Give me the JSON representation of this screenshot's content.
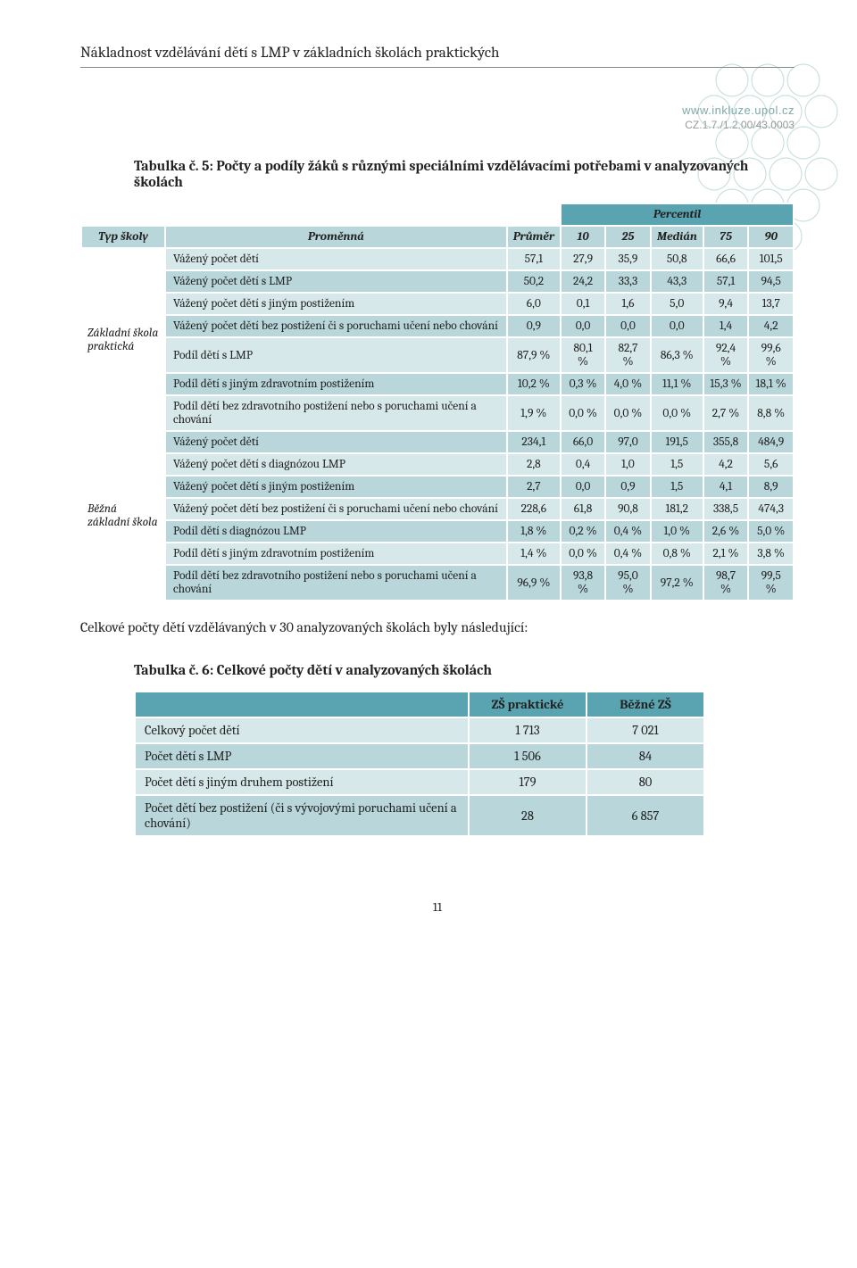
{
  "header": {
    "title": "Nákladnost vzdělávání dětí s LMP v základních školách praktických",
    "url": "www.inkluze.upol.cz",
    "code": "CZ.1.7./1.2.00/43.0003"
  },
  "caption1": {
    "prefix": "Tabulka č. 5: ",
    "text": "Počty a podíly žáků s různými speciálními vzdělávacími potřebami v analyzovaných školách"
  },
  "table1": {
    "percentil_label": "Percentil",
    "col_headers": [
      "Typ školy",
      "Proměnná",
      "Průměr",
      "10",
      "25",
      "Medián",
      "75",
      "90"
    ],
    "groups": [
      {
        "label": "Základní škola praktická",
        "rows": [
          {
            "shade": "light",
            "var": "Vážený počet dětí",
            "vals": [
              "57,1",
              "27,9",
              "35,9",
              "50,8",
              "66,6",
              "101,5"
            ]
          },
          {
            "shade": "dark",
            "var": "Vážený počet dětí s LMP",
            "vals": [
              "50,2",
              "24,2",
              "33,3",
              "43,3",
              "57,1",
              "94,5"
            ]
          },
          {
            "shade": "light",
            "var": "Vážený počet dětí s jiným postižením",
            "vals": [
              "6,0",
              "0,1",
              "1,6",
              "5,0",
              "9,4",
              "13,7"
            ]
          },
          {
            "shade": "dark",
            "var": "Vážený počet dětí bez postižení či s poruchami učení nebo chování",
            "vals": [
              "0,9",
              "0,0",
              "0,0",
              "0,0",
              "1,4",
              "4,2"
            ]
          },
          {
            "shade": "light",
            "var": "Podíl dětí s LMP",
            "vals": [
              "87,9 %",
              "80,1 %",
              "82,7 %",
              "86,3 %",
              "92,4 %",
              "99,6 %"
            ]
          },
          {
            "shade": "dark",
            "var": "Podíl dětí s jiným zdravotním postižením",
            "vals": [
              "10,2 %",
              "0,3 %",
              "4,0 %",
              "11,1 %",
              "15,3 %",
              "18,1 %"
            ]
          },
          {
            "shade": "light",
            "var": "Podíl dětí bez zdravotního postižení nebo s poruchami učení a chování",
            "vals": [
              "1,9 %",
              "0,0 %",
              "0,0 %",
              "0,0 %",
              "2,7 %",
              "8,8 %"
            ]
          }
        ]
      },
      {
        "label": "Běžná základní škola",
        "rows": [
          {
            "shade": "dark",
            "var": "Vážený počet dětí",
            "vals": [
              "234,1",
              "66,0",
              "97,0",
              "191,5",
              "355,8",
              "484,9"
            ]
          },
          {
            "shade": "light",
            "var": "Vážený počet dětí s diagnózou LMP",
            "vals": [
              "2,8",
              "0,4",
              "1,0",
              "1,5",
              "4,2",
              "5,6"
            ]
          },
          {
            "shade": "dark",
            "var": "Vážený počet dětí s jiným postižením",
            "vals": [
              "2,7",
              "0,0",
              "0,9",
              "1,5",
              "4,1",
              "8,9"
            ]
          },
          {
            "shade": "light",
            "var": "Vážený počet dětí bez postižení či s poruchami učení nebo chování",
            "vals": [
              "228,6",
              "61,8",
              "90,8",
              "181,2",
              "338,5",
              "474,3"
            ]
          },
          {
            "shade": "dark",
            "var": "Podíl dětí s diagnózou LMP",
            "vals": [
              "1,8 %",
              "0,2 %",
              "0,4 %",
              "1,0 %",
              "2,6 %",
              "5,0 %"
            ]
          },
          {
            "shade": "light",
            "var": "Podíl dětí s jiným zdravotním postižením",
            "vals": [
              "1,4 %",
              "0,0 %",
              "0,4 %",
              "0,8 %",
              "2,1 %",
              "3,8 %"
            ]
          },
          {
            "shade": "dark",
            "var": "Podíl dětí bez zdravotního postižení nebo s poruchami učení a chování",
            "vals": [
              "96,9 %",
              "93,8 %",
              "95,0 %",
              "97,2 %",
              "98,7 %",
              "99,5 %"
            ]
          }
        ]
      }
    ]
  },
  "body_text": "Celkové počty dětí vzdělávaných v 30 analyzovaných školách byly následující:",
  "caption2": {
    "prefix": "Tabulka č. 6: ",
    "text": "Celkové počty dětí v analyzovaných školách"
  },
  "table2": {
    "headers": [
      "ZŠ praktické",
      "Běžné ZŠ"
    ],
    "rows": [
      {
        "shade": "l",
        "label": "Celkový počet dětí",
        "vals": [
          "1 713",
          "7 021"
        ]
      },
      {
        "shade": "d",
        "label": "Počet dětí s LMP",
        "vals": [
          "1 506",
          "84"
        ]
      },
      {
        "shade": "l",
        "label": "Počet dětí s jiným druhem postižení",
        "vals": [
          "179",
          "80"
        ]
      },
      {
        "shade": "d",
        "label": "Počet dětí bez postižení (či s vývojovými poruchami učení a chování)",
        "vals": [
          "28",
          "6 857"
        ]
      }
    ]
  },
  "page_number": "11",
  "colors": {
    "header_dark": "#5aa3b0",
    "row_light": "#d7e8ea",
    "row_dark": "#b9d7db",
    "url": "#7fa8a8",
    "code": "#999999"
  }
}
